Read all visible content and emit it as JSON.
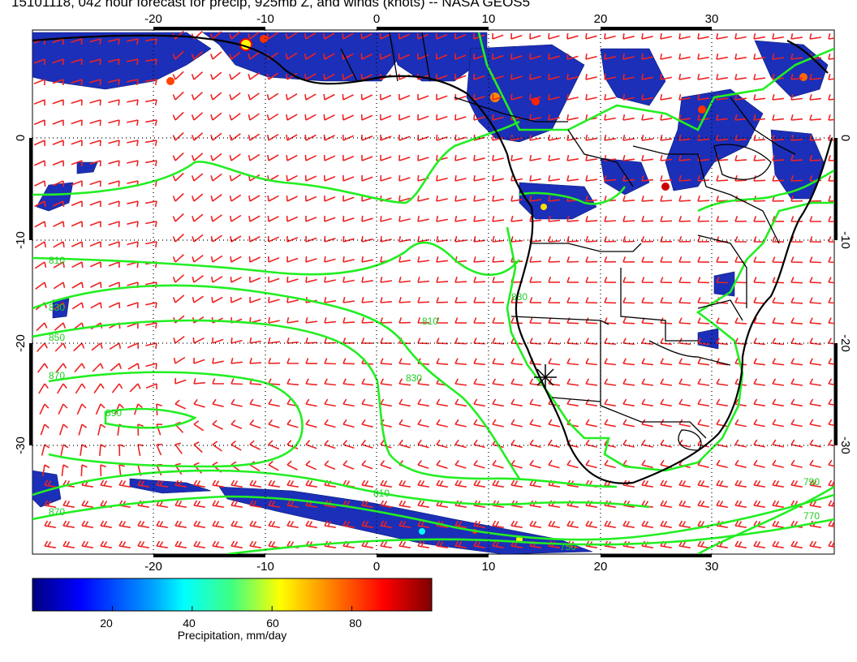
{
  "title": "15101118, 042 hour forecast for precip, 925mb Z, and winds (knots) -- NASA GEOS5",
  "map": {
    "lon_range": [
      -30,
      42
    ],
    "lat_range": [
      -40,
      10
    ],
    "lon_ticks": [
      "-20",
      "-10",
      "0",
      "10",
      "20",
      "30"
    ],
    "lat_ticks": [
      "0",
      "-10",
      "-20",
      "-30"
    ],
    "grid_lines": "dotted",
    "colors": {
      "contour": "#22ee22",
      "barbs": "#ee2222",
      "coast": "#000000",
      "precip_low": "#00007f",
      "precip_high": "#7f0000"
    },
    "contour_labels": [
      "810",
      "830",
      "850",
      "870",
      "890",
      "790",
      "770",
      "750"
    ],
    "marker": {
      "symbol": "asterisk",
      "lon": 15,
      "lat": -23
    }
  },
  "colorbar": {
    "ticks": [
      "20",
      "40",
      "60",
      "80"
    ],
    "tick_values": [
      20,
      40,
      60,
      80
    ],
    "range": [
      0,
      100
    ],
    "label": "Precipitation, mm/day"
  }
}
